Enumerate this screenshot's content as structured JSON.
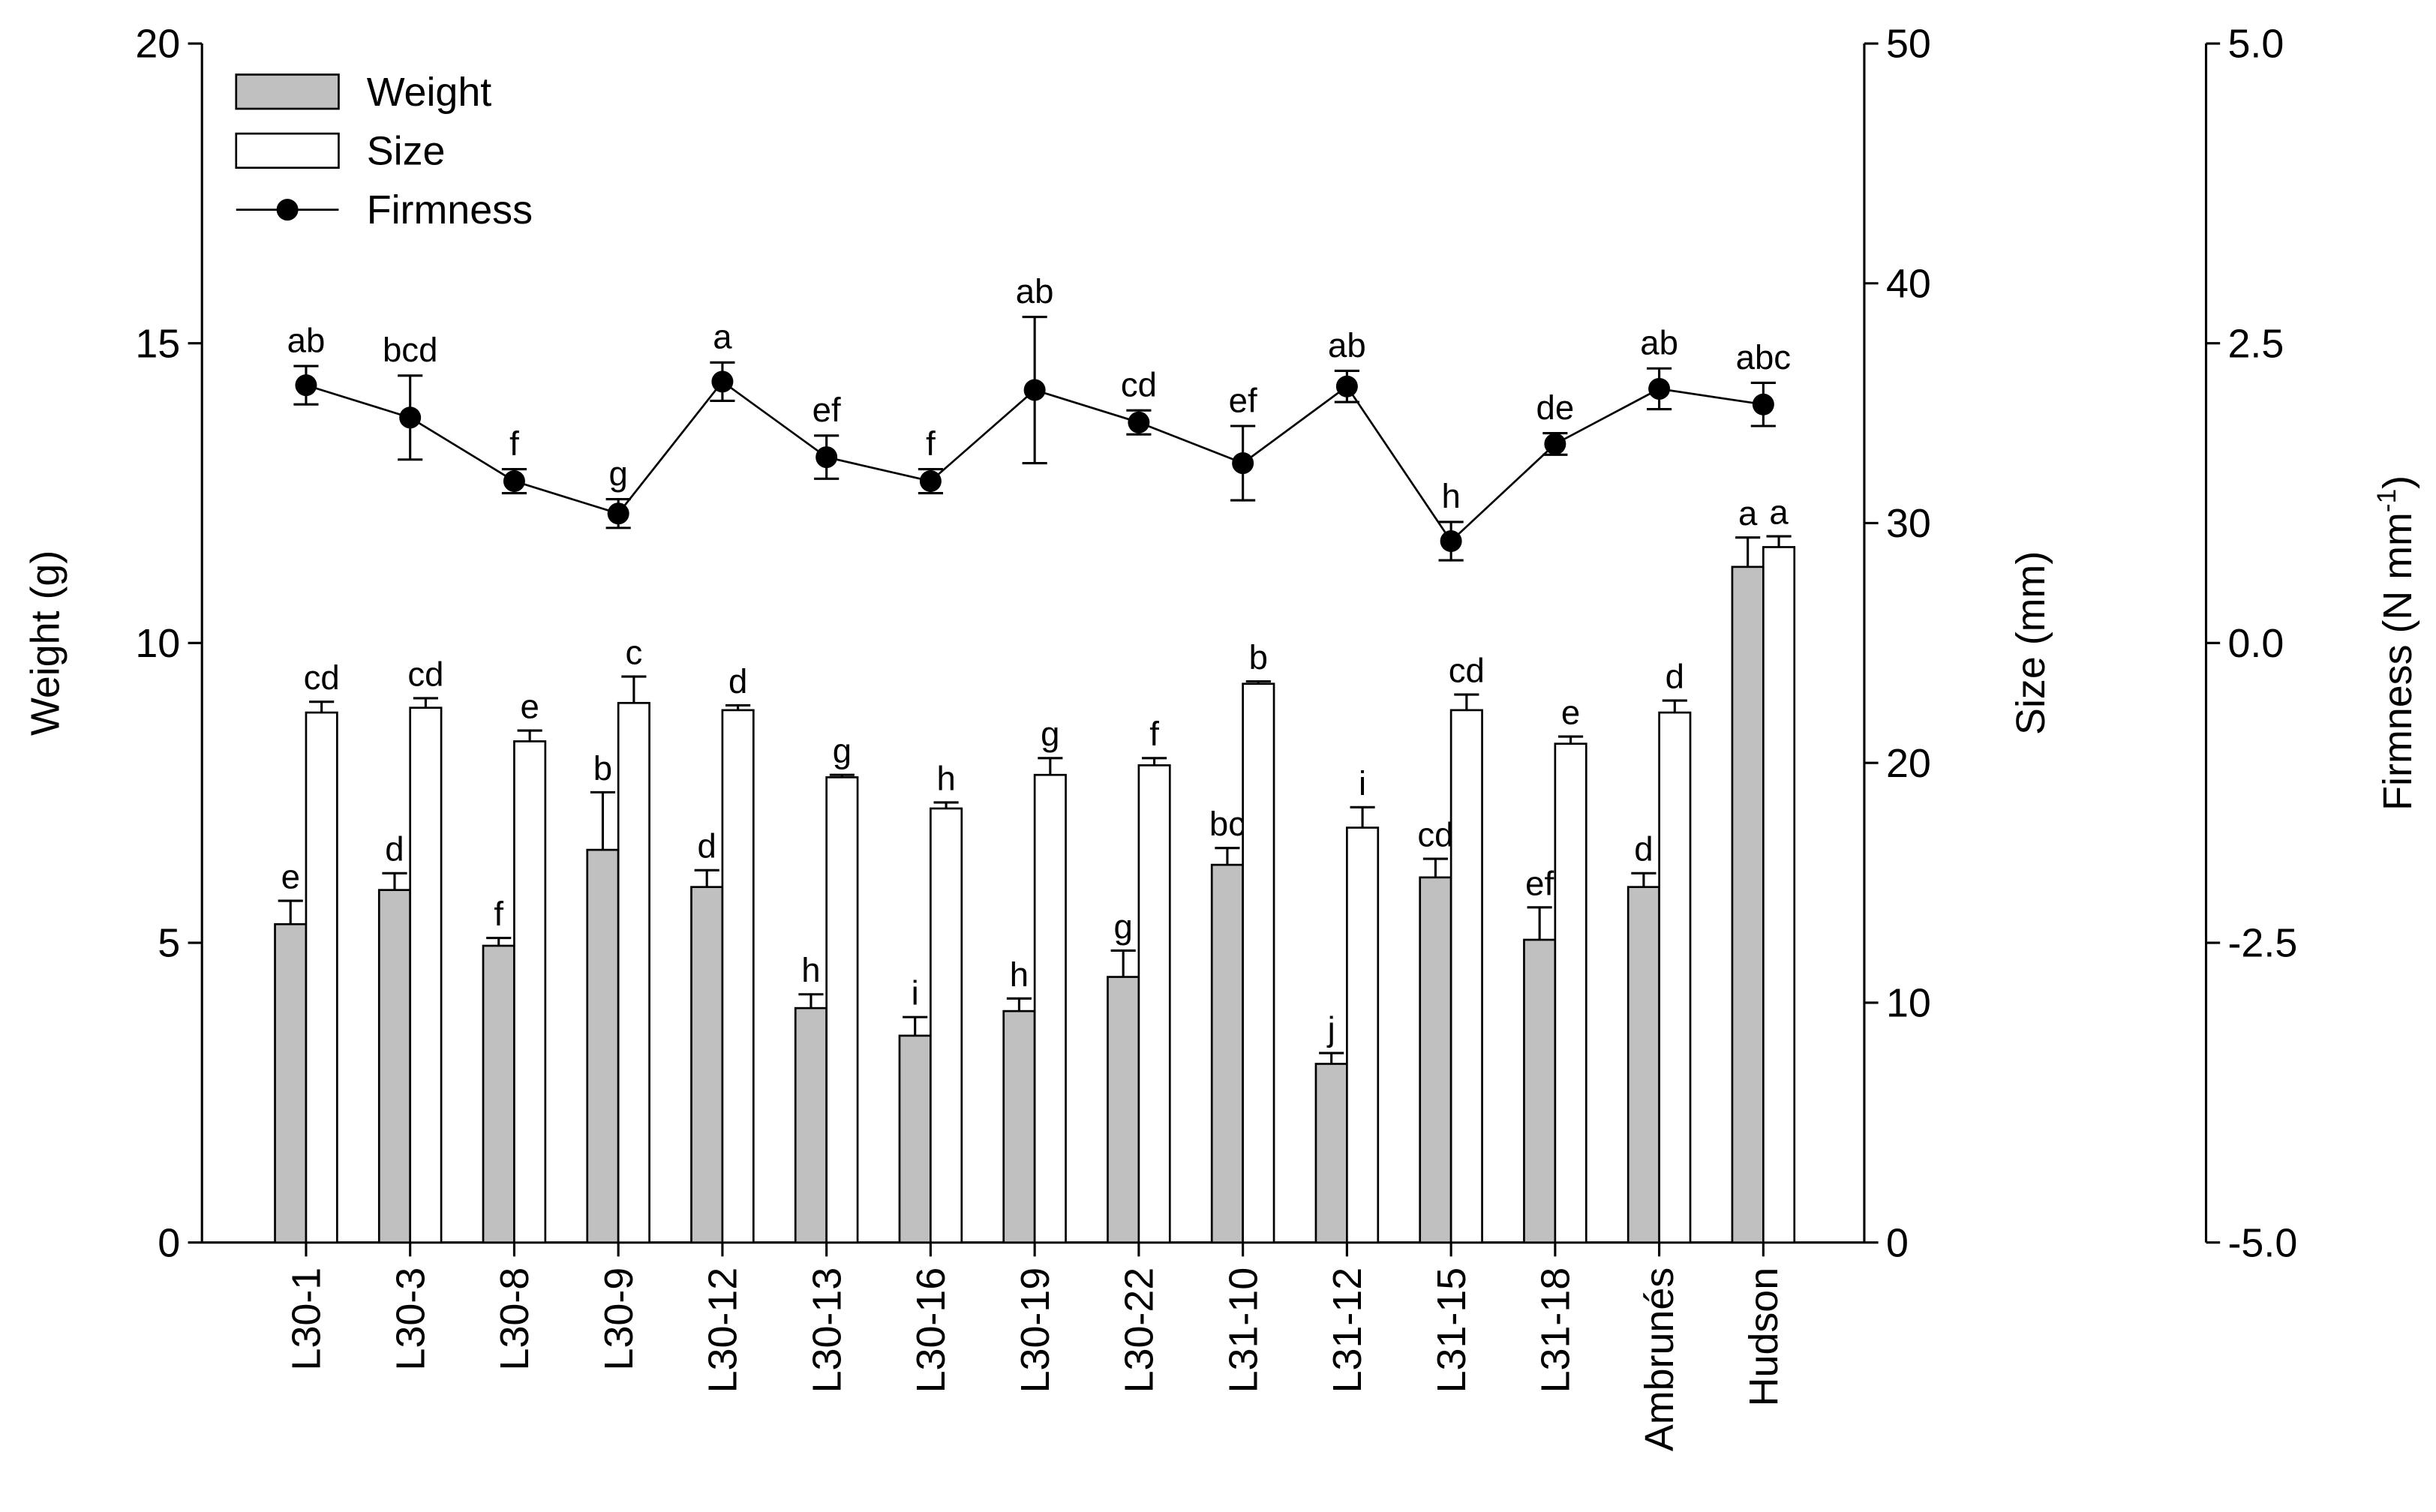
{
  "chart_data": {
    "type": "bar",
    "categories": [
      "L30-1",
      "L30-3",
      "L30-8",
      "L30-9",
      "L30-12",
      "L30-13",
      "L30-16",
      "L30-19",
      "L30-22",
      "L31-10",
      "L31-12",
      "L31-15",
      "L31-18",
      "Ambrunés",
      "Hudson"
    ],
    "ylabel": "Weight (g)",
    "ylim": [
      0,
      20
    ],
    "yticks": [
      0,
      5,
      10,
      15,
      20
    ],
    "y2label": "Size (mm)",
    "y2lim": [
      0,
      50
    ],
    "y2ticks": [
      0,
      10,
      20,
      30,
      40,
      50
    ],
    "y3label": "Firmness (N mm",
    "y3label_sup": "-1",
    "y3label_end": ")",
    "y3lim": [
      -5,
      5
    ],
    "y3ticks": [
      {
        "value": -5,
        "label": "-5.0"
      },
      {
        "value": -2.5,
        "label": "-2.5"
      },
      {
        "value": 0,
        "label": "0.0"
      },
      {
        "value": 2.5,
        "label": "2.5"
      },
      {
        "value": 5,
        "label": "5.0"
      }
    ],
    "legend": "upper left",
    "series": [
      {
        "name": "Weight",
        "type": "bar",
        "axis": "y",
        "color": "#c0c0c0",
        "values": [
          5.31,
          5.88,
          4.95,
          6.55,
          5.93,
          3.91,
          3.45,
          3.86,
          4.43,
          6.3,
          2.98,
          6.09,
          5.05,
          5.93,
          11.27
        ],
        "errors": [
          0.39,
          0.28,
          0.13,
          0.96,
          0.28,
          0.23,
          0.31,
          0.21,
          0.44,
          0.28,
          0.18,
          0.31,
          0.54,
          0.23,
          0.49
        ],
        "letters": [
          "e",
          "d",
          "f",
          "b",
          "d",
          "h",
          "i",
          "h",
          "g",
          "bc",
          "j",
          "cd",
          "ef",
          "d",
          "a"
        ]
      },
      {
        "name": "Size",
        "type": "bar",
        "axis": "y2",
        "color": "#ffffff",
        "values": [
          22.1,
          22.3,
          20.9,
          22.5,
          22.2,
          19.4,
          18.1,
          19.5,
          19.9,
          23.3,
          17.3,
          22.2,
          20.8,
          22.1,
          29.0
        ],
        "errors": [
          0.45,
          0.4,
          0.45,
          1.1,
          0.2,
          0.1,
          0.25,
          0.7,
          0.3,
          0.1,
          0.85,
          0.65,
          0.3,
          0.5,
          0.45
        ],
        "letters": [
          "cd",
          "cd",
          "e",
          "c",
          "d",
          "g",
          "h",
          "g",
          "f",
          "b",
          "i",
          "cd",
          "e",
          "d",
          "a"
        ]
      },
      {
        "name": "Firmness",
        "type": "line",
        "axis": "y3",
        "color": "#000000",
        "values": [
          2.15,
          1.88,
          1.35,
          1.08,
          2.18,
          1.55,
          1.35,
          2.11,
          1.84,
          1.5,
          2.14,
          0.85,
          1.66,
          2.12,
          1.99
        ],
        "errors": [
          0.16,
          0.35,
          0.1,
          0.12,
          0.16,
          0.18,
          0.1,
          0.61,
          0.1,
          0.31,
          0.13,
          0.16,
          0.09,
          0.17,
          0.18
        ],
        "letters": [
          "ab",
          "bcd",
          "f",
          "g",
          "a",
          "ef",
          "f",
          "ab",
          "cd",
          "ef",
          "ab",
          "h",
          "de",
          "ab",
          "abc"
        ]
      }
    ]
  }
}
